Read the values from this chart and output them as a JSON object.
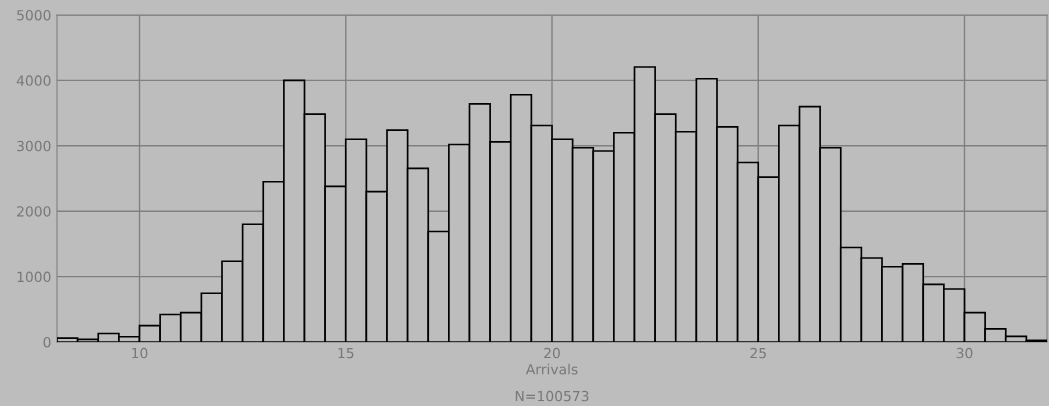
{
  "chart_data": {
    "type": "histogram",
    "xlabel": "Arrivals",
    "annotations": [
      "N=100573"
    ],
    "bins": [
      8,
      8.5,
      9,
      9.5,
      10,
      10.5,
      11,
      11.5,
      12,
      12.5,
      13,
      13.5,
      14,
      14.5,
      15,
      15.5,
      16,
      16.5,
      17,
      17.5,
      18,
      18.5,
      19,
      19.5,
      20,
      20.5,
      21,
      21.5,
      22,
      22.5,
      23,
      23.5,
      24,
      24.5,
      25,
      25.5,
      26,
      26.5,
      27,
      27.5,
      28,
      28.5,
      29,
      29.5,
      30,
      30.5,
      31,
      31.5,
      32
    ],
    "values": [
      60,
      40,
      130,
      80,
      250,
      420,
      450,
      745,
      1235,
      1800,
      2450,
      4000,
      3485,
      2380,
      3100,
      2300,
      3240,
      2655,
      1690,
      3020,
      3640,
      3060,
      3780,
      3310,
      3100,
      2970,
      2920,
      3200,
      4205,
      3485,
      3215,
      4025,
      3290,
      2745,
      2520,
      3310,
      3600,
      2970,
      1445,
      1285,
      1150,
      1195,
      880,
      810,
      450,
      200,
      85,
      25
    ],
    "color": "#bdbdbd",
    "xlim": [
      8,
      32
    ],
    "xticks": [
      10,
      15,
      20,
      25,
      30
    ],
    "ylim": [
      0,
      5000
    ],
    "yticks": [
      0,
      1000,
      2000,
      3000,
      4000,
      5000
    ],
    "grid": true
  }
}
